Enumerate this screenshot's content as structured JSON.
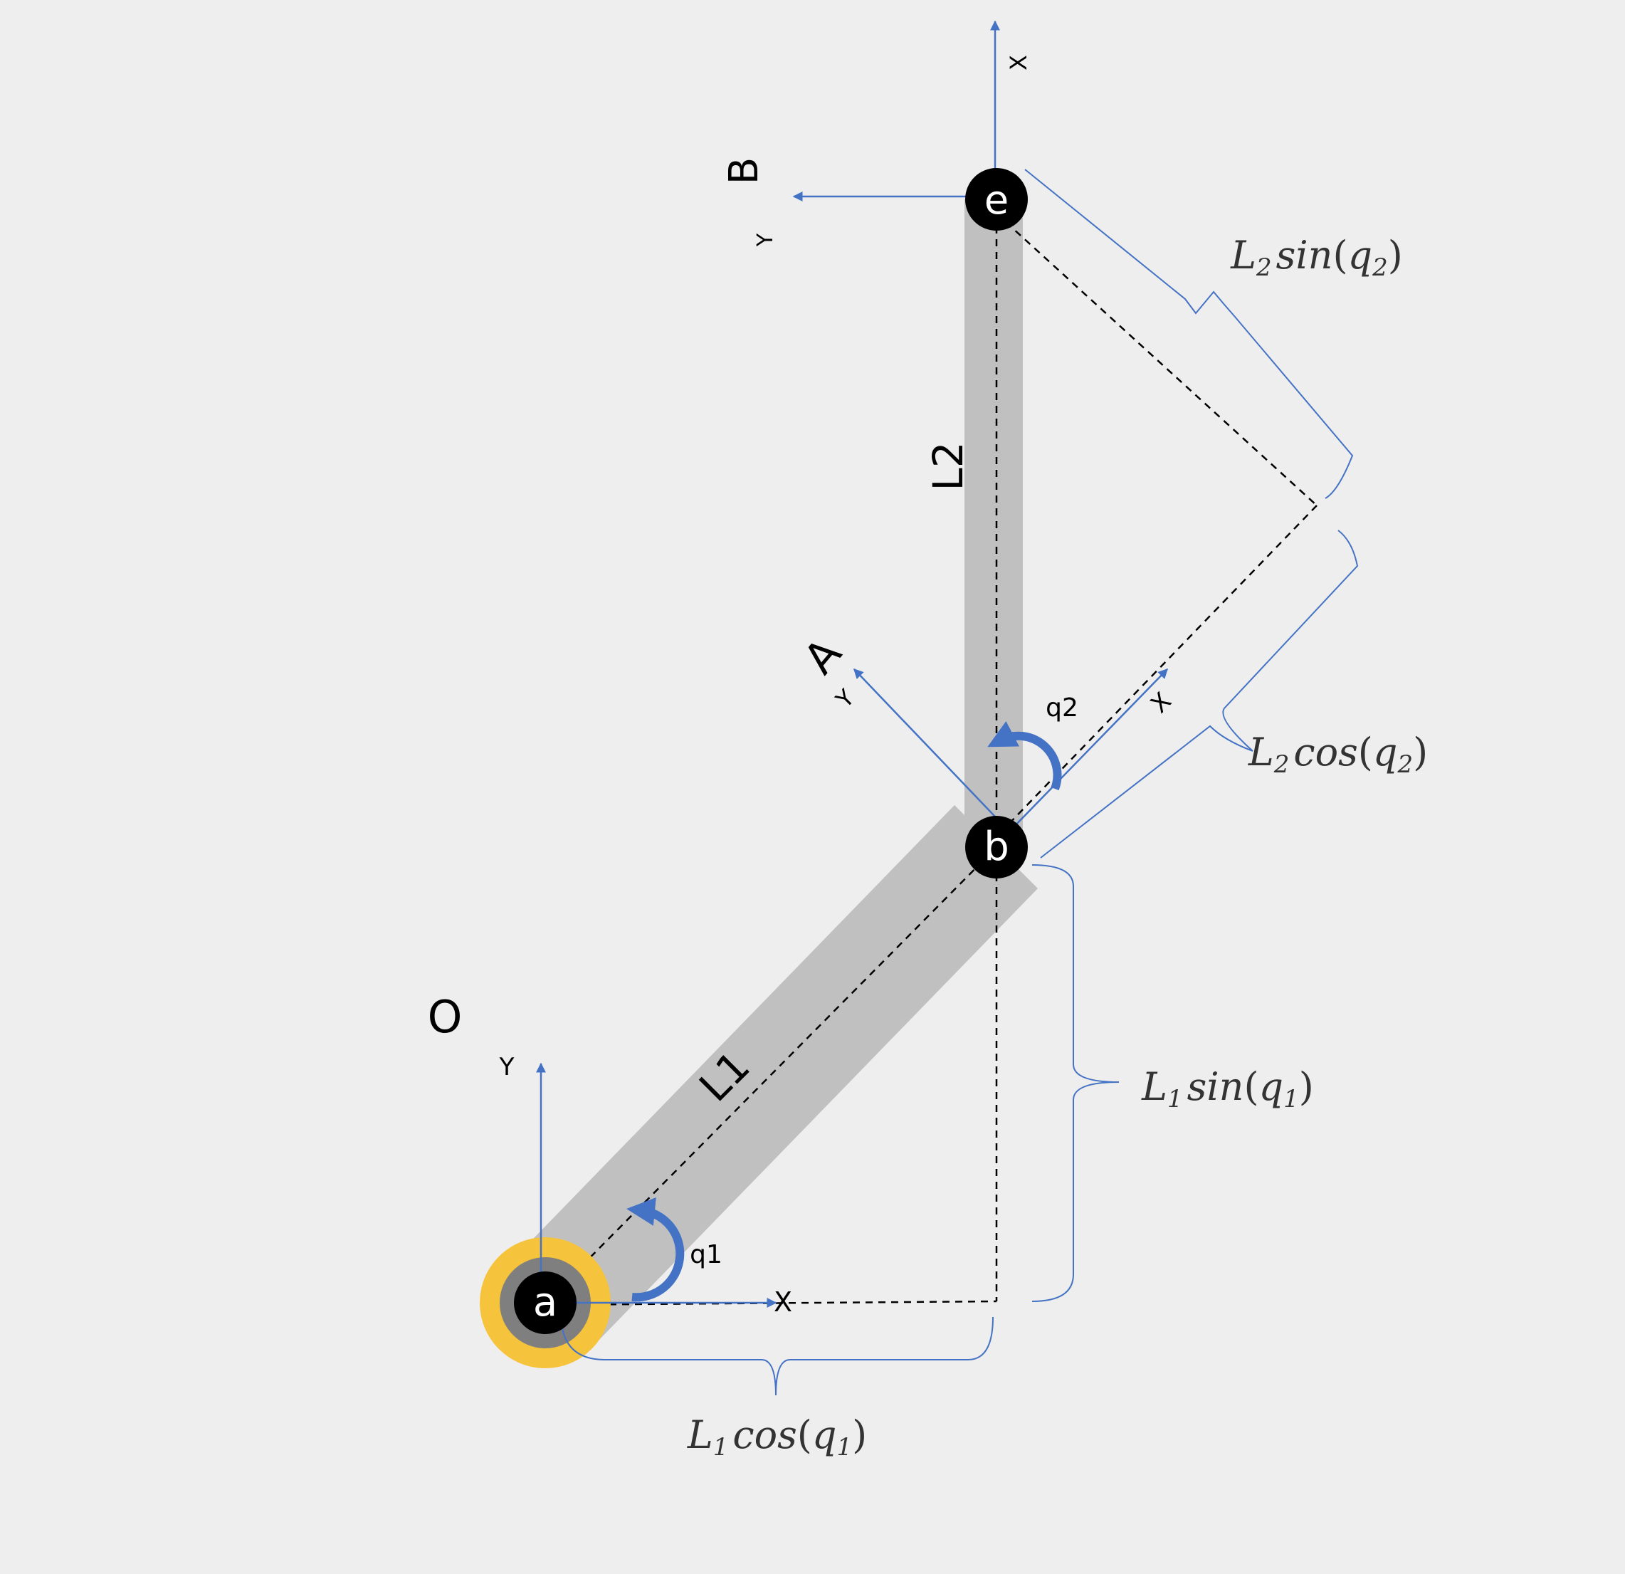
{
  "colors": {
    "background": "#eeeeee",
    "link": "#c0c0c0",
    "axis": "#4472c4",
    "joint": "#000000",
    "base_ring": "#f6c33c",
    "base_inner": "#7f7f7f"
  },
  "frames": {
    "O": {
      "name": "O",
      "x_label": "X",
      "y_label": "Y"
    },
    "A": {
      "name": "A",
      "x_label": "X",
      "y_label": "Y"
    },
    "B": {
      "name": "B",
      "x_label": "X",
      "y_label": "Y"
    }
  },
  "joints": {
    "a": "a",
    "b": "b",
    "e": "e"
  },
  "links": {
    "L1": "L1",
    "L2": "L2"
  },
  "angles": {
    "q1": "q1",
    "q2": "q2"
  },
  "projections": {
    "L1_cos": {
      "base": "L",
      "sub": "1",
      "fn": "cos",
      "arg": "q",
      "arg_sub": "1"
    },
    "L1_sin": {
      "base": "L",
      "sub": "1",
      "fn": "sin",
      "arg": "q",
      "arg_sub": "1"
    },
    "L2_cos": {
      "base": "L",
      "sub": "2",
      "fn": "cos",
      "arg": "q",
      "arg_sub": "2"
    },
    "L2_sin": {
      "base": "L",
      "sub": "2",
      "fn": "sin",
      "arg": "q",
      "arg_sub": "2"
    }
  }
}
